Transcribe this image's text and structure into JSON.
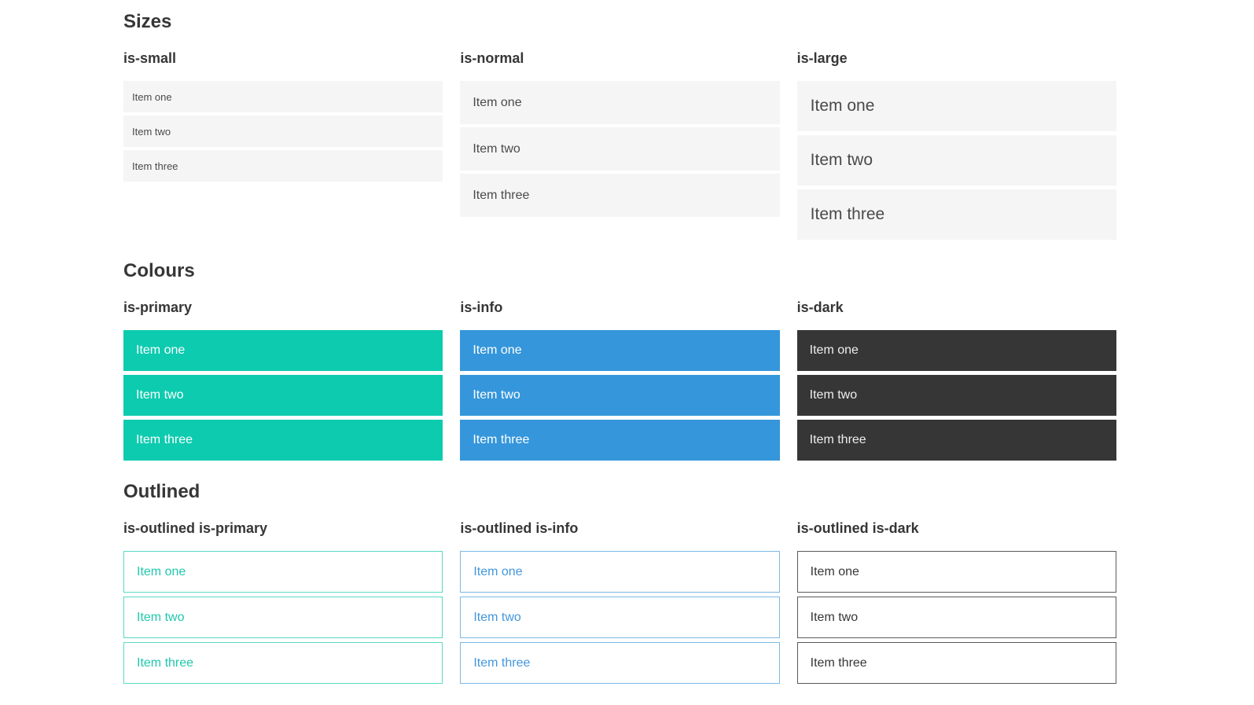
{
  "sections": [
    {
      "title": "Sizes",
      "groups": [
        {
          "heading": "is-small",
          "items": [
            "Item one",
            "Item two",
            "Item three"
          ]
        },
        {
          "heading": "is-normal",
          "items": [
            "Item one",
            "Item two",
            "Item three"
          ]
        },
        {
          "heading": "is-large",
          "items": [
            "Item one",
            "Item two",
            "Item three"
          ]
        }
      ]
    },
    {
      "title": "Colours",
      "groups": [
        {
          "heading": "is-primary",
          "items": [
            "Item one",
            "Item two",
            "Item three"
          ]
        },
        {
          "heading": "is-info",
          "items": [
            "Item one",
            "Item two",
            "Item three"
          ]
        },
        {
          "heading": "is-dark",
          "items": [
            "Item one",
            "Item two",
            "Item three"
          ]
        }
      ]
    },
    {
      "title": "Outlined",
      "groups": [
        {
          "heading": "is-outlined is-primary",
          "items": [
            "Item one",
            "Item two",
            "Item three"
          ]
        },
        {
          "heading": "is-outlined is-info",
          "items": [
            "Item one",
            "Item two",
            "Item three"
          ]
        },
        {
          "heading": "is-outlined is-dark",
          "items": [
            "Item one",
            "Item two",
            "Item three"
          ]
        }
      ]
    }
  ],
  "colors": {
    "primary": "#0dcbaf",
    "info": "#3596db",
    "dark": "#363636",
    "heading": "#363636",
    "item_bg": "#f5f5f5",
    "item_text": "#4a4a4a",
    "on_color_text": "#ffffff",
    "on_dark_text": "#eeeeee",
    "primary_text": "#1fc8ad",
    "info_text": "#4397dc",
    "primary_outline_border": "#5ad9c3",
    "info_outline_border": "#7ab9e6",
    "dark_outline_border": "#5a5a5a"
  }
}
